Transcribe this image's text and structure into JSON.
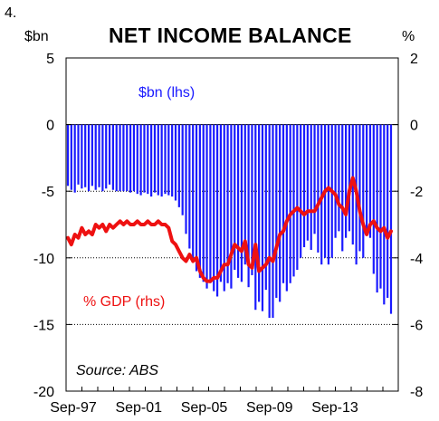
{
  "figure_number": "4.",
  "chart_data": {
    "type": "bar+line",
    "title": "NET INCOME BALANCE",
    "left_unit": "$bn",
    "right_unit": "%",
    "source": "Source: ABS",
    "x_tick_labels": [
      "Sep-97",
      "Sep-01",
      "Sep-05",
      "Sep-09",
      "Sep-13"
    ],
    "y_left": {
      "min": -20,
      "max": 5,
      "ticks": [
        "5",
        "0",
        "-5",
        "-10",
        "-15",
        "-20"
      ]
    },
    "y_right": {
      "min": -8,
      "max": 2,
      "ticks": [
        "2",
        "0",
        "-2",
        "-4",
        "-6",
        "-8"
      ]
    },
    "grid": "dotted horizontal at -5, -10, -15 ($bn)",
    "colors": {
      "bars": "#1a1aff",
      "line": "#ee1111"
    },
    "series": [
      {
        "name": "$bn (lhs)",
        "type": "bar",
        "axis": "left",
        "values": [
          -4.6,
          -4.9,
          -5.1,
          -4.5,
          -4.8,
          -4.7,
          -5.0,
          -4.6,
          -4.9,
          -4.7,
          -5.0,
          -4.8,
          -4.5,
          -4.9,
          -5.0,
          -5.0,
          -5.0,
          -5.0,
          -5.1,
          -5.0,
          -5.2,
          -5.3,
          -5.1,
          -5.2,
          -5.4,
          -5.1,
          -5.3,
          -5.4,
          -5.2,
          -5.3,
          -5.4,
          -5.7,
          -6.2,
          -6.8,
          -8.2,
          -9.3,
          -10.1,
          -11.0,
          -11.5,
          -11.8,
          -12.3,
          -11.9,
          -12.5,
          -12.9,
          -11.8,
          -12.5,
          -11.9,
          -12.3,
          -10.9,
          -11.5,
          -11.8,
          -10.5,
          -12.2,
          -11.3,
          -13.9,
          -13.3,
          -14.0,
          -12.4,
          -14.5,
          -14.5,
          -13.0,
          -13.3,
          -11.9,
          -12.5,
          -11.9,
          -11.4,
          -10.9,
          -10.0,
          -9.2,
          -8.7,
          -9.4,
          -8.2,
          -9.6,
          -10.5,
          -10.0,
          -10.5,
          -10.0,
          -8.5,
          -8.0,
          -9.5,
          -8.5,
          -8.0,
          -9.0,
          -10.5,
          -9.5,
          -10.0,
          -8.0,
          -8.5,
          -11.2,
          -12.6,
          -12.3,
          -13.5,
          -13.0,
          -14.2
        ]
      },
      {
        "name": "% GDP (rhs)",
        "type": "line",
        "axis": "right",
        "values": [
          -3.4,
          -3.6,
          -3.3,
          -3.4,
          -3.1,
          -3.3,
          -3.2,
          -3.3,
          -3.0,
          -3.1,
          -3.0,
          -3.2,
          -3.0,
          -3.1,
          -3.0,
          -2.9,
          -3.0,
          -2.9,
          -3.0,
          -3.0,
          -2.9,
          -3.0,
          -3.0,
          -2.9,
          -3.0,
          -3.0,
          -2.9,
          -3.0,
          -3.0,
          -3.1,
          -3.5,
          -3.6,
          -3.8,
          -4.0,
          -4.1,
          -3.9,
          -4.1,
          -4.0,
          -4.4,
          -4.6,
          -4.7,
          -4.7,
          -4.6,
          -4.6,
          -4.4,
          -4.2,
          -4.2,
          -3.9,
          -3.6,
          -3.7,
          -3.8,
          -3.5,
          -4.2,
          -4.3,
          -3.6,
          -4.4,
          -4.3,
          -4.2,
          -4.0,
          -4.1,
          -3.7,
          -3.3,
          -3.2,
          -2.9,
          -2.7,
          -2.6,
          -2.5,
          -2.6,
          -2.7,
          -2.6,
          -2.6,
          -2.6,
          -2.4,
          -2.2,
          -2.0,
          -1.9,
          -2.0,
          -2.1,
          -2.4,
          -2.5,
          -2.7,
          -2.0,
          -1.6,
          -2.0,
          -2.6,
          -3.0,
          -3.3,
          -3.0,
          -2.9,
          -3.1,
          -3.2,
          -3.1,
          -3.4,
          -3.2
        ]
      }
    ],
    "annotations": [
      "$bn (lhs)",
      "% GDP (rhs)"
    ]
  }
}
